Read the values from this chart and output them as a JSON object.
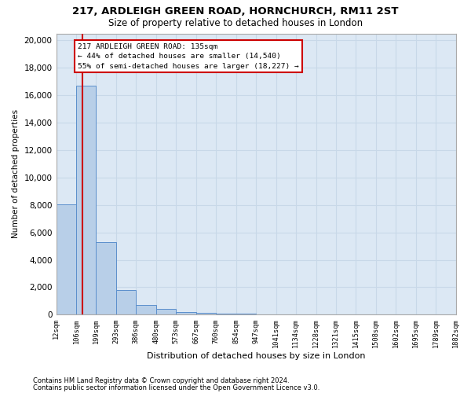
{
  "title1": "217, ARDLEIGH GREEN ROAD, HORNCHURCH, RM11 2ST",
  "title2": "Size of property relative to detached houses in London",
  "xlabel": "Distribution of detached houses by size in London",
  "ylabel": "Number of detached properties",
  "footnote1": "Contains HM Land Registry data © Crown copyright and database right 2024.",
  "footnote2": "Contains public sector information licensed under the Open Government Licence v3.0.",
  "annotation_line1": "217 ARDLEIGH GREEN ROAD: 135sqm",
  "annotation_line2": "← 44% of detached houses are smaller (14,540)",
  "annotation_line3": "55% of semi-detached houses are larger (18,227) →",
  "bin_edges": [
    12,
    106,
    199,
    293,
    386,
    480,
    573,
    667,
    760,
    854,
    947,
    1041,
    1134,
    1228,
    1321,
    1415,
    1508,
    1602,
    1695,
    1789,
    1882
  ],
  "bin_heights": [
    8050,
    16700,
    5280,
    1800,
    700,
    400,
    200,
    120,
    80,
    50,
    0,
    0,
    0,
    0,
    0,
    0,
    0,
    0,
    0,
    0
  ],
  "bar_color": "#b8cfe8",
  "bar_edge_color": "#5b8fcc",
  "vline_x": 135,
  "vline_color": "#cc0000",
  "annotation_box_color": "#cc0000",
  "ylim": [
    0,
    20500
  ],
  "yticks": [
    0,
    2000,
    4000,
    6000,
    8000,
    10000,
    12000,
    14000,
    16000,
    18000,
    20000
  ],
  "xlim": [
    12,
    1882
  ],
  "xtick_labels": [
    "12sqm",
    "106sqm",
    "199sqm",
    "293sqm",
    "386sqm",
    "480sqm",
    "573sqm",
    "667sqm",
    "760sqm",
    "854sqm",
    "947sqm",
    "1041sqm",
    "1134sqm",
    "1228sqm",
    "1321sqm",
    "1415sqm",
    "1508sqm",
    "1602sqm",
    "1695sqm",
    "1789sqm",
    "1882sqm"
  ],
  "xtick_positions": [
    12,
    106,
    199,
    293,
    386,
    480,
    573,
    667,
    760,
    854,
    947,
    1041,
    1134,
    1228,
    1321,
    1415,
    1508,
    1602,
    1695,
    1789,
    1882
  ],
  "grid_color": "#c8d8e8",
  "background_color": "#dce8f4"
}
